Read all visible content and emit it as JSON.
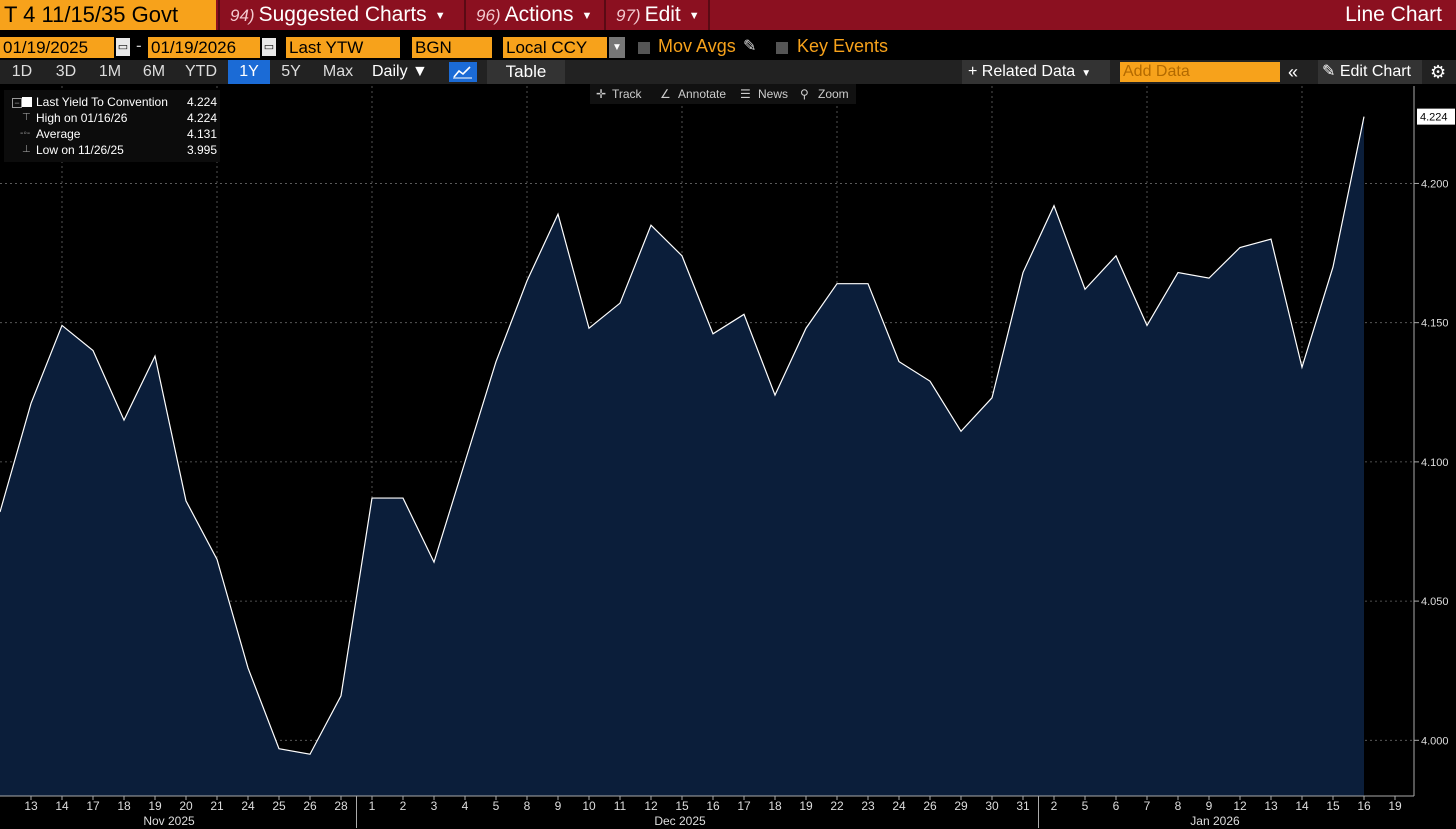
{
  "titlebar": {
    "ticker": "T 4 11/15/35 Govt",
    "menus": [
      {
        "num": "94)",
        "label": "Suggested Charts"
      },
      {
        "num": "96)",
        "label": "Actions"
      },
      {
        "num": "97)",
        "label": "Edit"
      }
    ],
    "chart_type_label": "Line Chart"
  },
  "controls": {
    "start_date": "01/19/2025",
    "end_date": "01/19/2026",
    "dash": "-",
    "field": "Last YTW",
    "source": "BGN",
    "currency": "Local CCY",
    "mov_avgs": "Mov Avgs",
    "key_events": "Key Events"
  },
  "periods": [
    "1D",
    "3D",
    "1M",
    "6M",
    "YTD",
    "1Y",
    "5Y",
    "Max"
  ],
  "active_period": "1Y",
  "frequency": "Daily ▼",
  "table_label": "Table",
  "related_data": "Related Data",
  "add_data_placeholder": "Add Data",
  "edit_chart": "Edit Chart",
  "tools": [
    "Track",
    "Annotate",
    "News",
    "Zoom"
  ],
  "legend": [
    {
      "label": "Last Yield To Convention",
      "value": "4.224"
    },
    {
      "label": "High on 01/16/26",
      "value": "4.224"
    },
    {
      "label": "Average",
      "value": "4.131"
    },
    {
      "label": "Low on 11/26/25",
      "value": "3.995"
    }
  ],
  "chart_data": {
    "type": "area",
    "series": [
      {
        "name": "Last Yield To Convention",
        "color": "#ffffff",
        "fill": "#0b1e3a"
      }
    ],
    "x_tick_labels": [
      "13",
      "14",
      "17",
      "18",
      "19",
      "20",
      "21",
      "24",
      "25",
      "26",
      "28",
      "1",
      "2",
      "3",
      "4",
      "5",
      "8",
      "9",
      "10",
      "11",
      "12",
      "15",
      "16",
      "17",
      "18",
      "19",
      "22",
      "23",
      "24",
      "26",
      "29",
      "30",
      "31",
      "2",
      "5",
      "6",
      "7",
      "8",
      "9",
      "12",
      "13",
      "14",
      "15",
      "16",
      "19"
    ],
    "month_labels": [
      "Nov 2025",
      "Dec 2025",
      "Jan 2026"
    ],
    "x_dates": [
      "2025-11-12",
      "2025-11-13",
      "2025-11-14",
      "2025-11-17",
      "2025-11-18",
      "2025-11-19",
      "2025-11-20",
      "2025-11-21",
      "2025-11-24",
      "2025-11-25",
      "2025-11-26",
      "2025-11-28",
      "2025-12-01",
      "2025-12-02",
      "2025-12-03",
      "2025-12-04",
      "2025-12-05",
      "2025-12-08",
      "2025-12-09",
      "2025-12-10",
      "2025-12-11",
      "2025-12-12",
      "2025-12-15",
      "2025-12-16",
      "2025-12-17",
      "2025-12-18",
      "2025-12-19",
      "2025-12-22",
      "2025-12-23",
      "2025-12-24",
      "2025-12-26",
      "2025-12-29",
      "2025-12-30",
      "2025-12-31",
      "2026-01-02",
      "2026-01-05",
      "2026-01-06",
      "2026-01-07",
      "2026-01-08",
      "2026-01-09",
      "2026-01-12",
      "2026-01-13",
      "2026-01-14",
      "2026-01-15",
      "2026-01-16"
    ],
    "values": [
      4.082,
      4.121,
      4.149,
      4.14,
      4.115,
      4.138,
      4.086,
      4.065,
      4.026,
      3.997,
      3.995,
      4.016,
      4.087,
      4.087,
      4.064,
      4.1,
      4.136,
      4.165,
      4.189,
      4.148,
      4.157,
      4.185,
      4.174,
      4.146,
      4.153,
      4.124,
      4.148,
      4.164,
      4.164,
      4.136,
      4.129,
      4.111,
      4.123,
      4.168,
      4.192,
      4.162,
      4.174,
      4.149,
      4.168,
      4.166,
      4.177,
      4.18,
      4.134,
      4.17,
      4.224
    ],
    "y_ticks": [
      "4.000",
      "4.050",
      "4.100",
      "4.150",
      "4.200"
    ],
    "last_value_label": "4.224",
    "ylim": [
      3.98,
      4.235
    ],
    "grid": true,
    "legend_position": "top-left"
  }
}
